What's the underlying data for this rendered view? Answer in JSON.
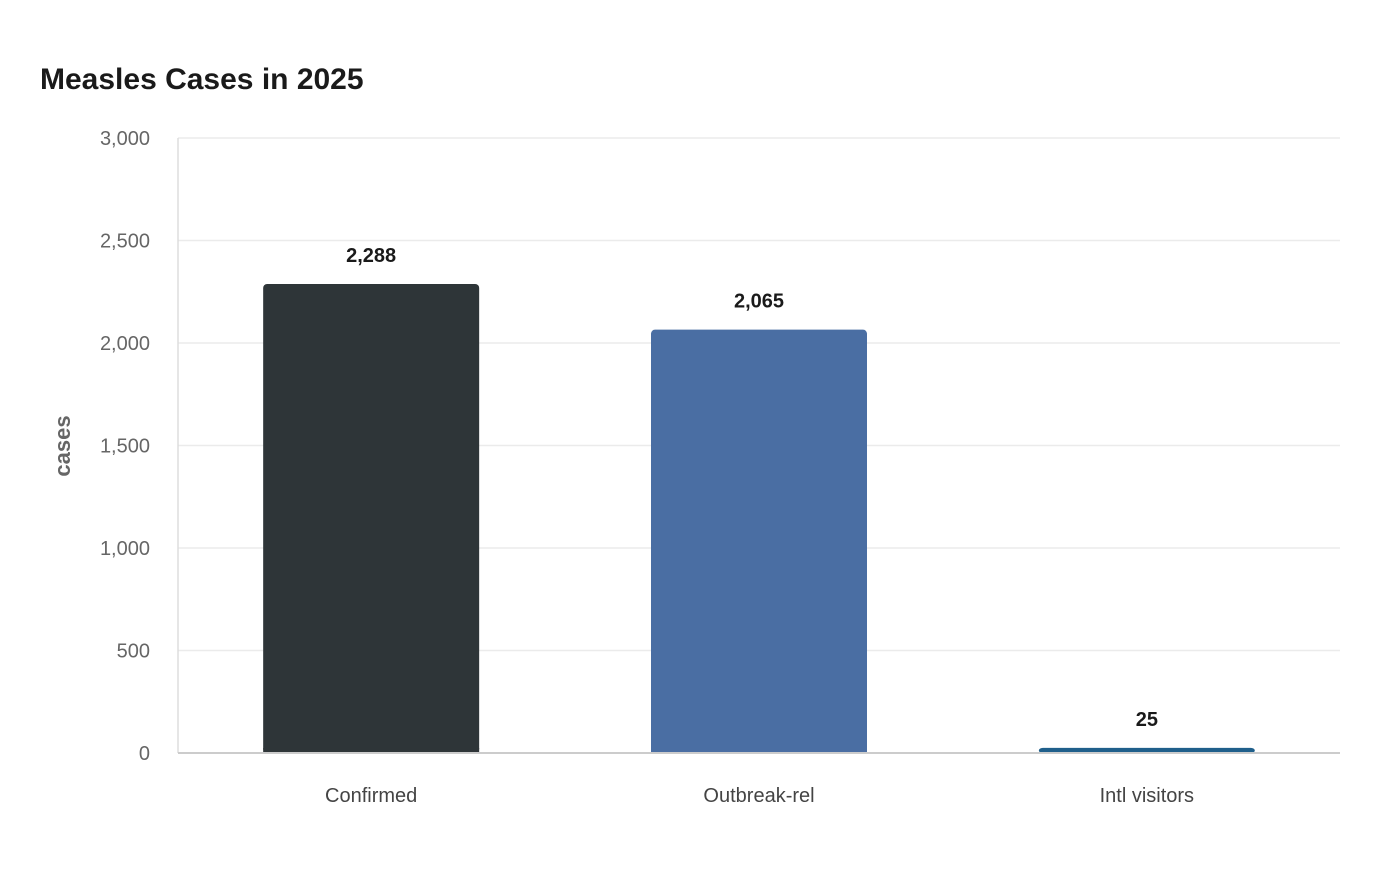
{
  "chart_data": {
    "type": "bar",
    "title": "Measles Cases in 2025",
    "xlabel": "",
    "ylabel": "cases",
    "categories": [
      "Confirmed",
      "Outbreak-rel",
      "Intl visitors"
    ],
    "values": [
      2288,
      2065,
      25
    ],
    "value_labels": [
      "2,288",
      "2,065",
      "25"
    ],
    "bar_colors": [
      "#2e3538",
      "#4a6ea3",
      "#1f5f8b"
    ],
    "ylim": [
      0,
      3000
    ],
    "yticks": [
      0,
      500,
      1000,
      1500,
      2000,
      2500,
      3000
    ],
    "ytick_labels": [
      "0",
      "500",
      "1,000",
      "1,500",
      "2,000",
      "2,500",
      "3,000"
    ],
    "grid": true,
    "legend": "none"
  }
}
